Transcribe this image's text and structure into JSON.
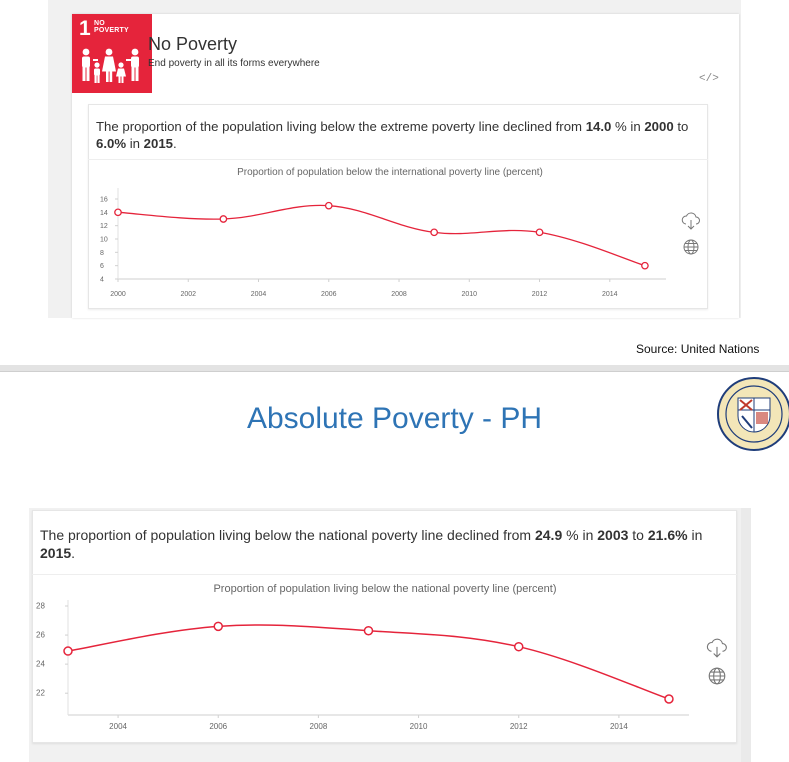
{
  "sdg": {
    "badge_number": "1",
    "badge_word_1": "NO",
    "badge_word_2": "POVERTY",
    "title": "No Poverty",
    "subtitle": "End poverty in all its forms everywhere",
    "embed_icon": "</>"
  },
  "panel1": {
    "stat": {
      "pre": "The proportion of the population living below the extreme poverty line declined from ",
      "v1": "14.0",
      "mid1": " % in ",
      "y1": "2000",
      "mid2": " to ",
      "v2": "6.0%",
      "mid3": " in ",
      "y2": "2015",
      "end": "."
    }
  },
  "source_text": "Source: United Nations",
  "slide_title": "Absolute Poverty - PH",
  "panel2": {
    "stat": {
      "pre": "The proportion of population living below the national poverty line declined from ",
      "v1": "24.9",
      "mid1": " % in ",
      "y1": "2003",
      "mid2": " to ",
      "v2": "21.6%",
      "mid3": " in ",
      "y2": "2015",
      "end": "."
    }
  },
  "icons": {
    "brand_red": "#e5243b",
    "line_color": "#e5243b",
    "side_icons": [
      "download-cloud-icon",
      "globe-icon"
    ]
  },
  "chart_data": [
    {
      "type": "line",
      "title": "Proportion of population below the international poverty line (percent)",
      "x": [
        2000,
        2003,
        2006,
        2009,
        2012,
        2015
      ],
      "values": [
        14.0,
        13.0,
        15.0,
        11.0,
        11.0,
        6.0
      ],
      "xticks": [
        "2000",
        "2002",
        "2004",
        "2006",
        "2008",
        "2010",
        "2012",
        "2014"
      ],
      "yticks": [
        "4",
        "6",
        "8",
        "10",
        "12",
        "14",
        "16"
      ],
      "xlim": [
        2000,
        2015.6
      ],
      "ylim": [
        4,
        16
      ],
      "grid": false,
      "legend": "none"
    },
    {
      "type": "line",
      "title": "Proportion of population living below the national poverty line (percent)",
      "x": [
        2003,
        2006,
        2009,
        2012,
        2015
      ],
      "values": [
        24.9,
        26.6,
        26.3,
        25.2,
        21.6
      ],
      "xticks": [
        "2004",
        "2006",
        "2008",
        "2010",
        "2012",
        "2014"
      ],
      "yticks": [
        "22",
        "24",
        "26",
        "28"
      ],
      "xlim": [
        2003,
        2015.4
      ],
      "ylim": [
        20.5,
        28
      ],
      "grid": false,
      "legend": "none"
    }
  ]
}
